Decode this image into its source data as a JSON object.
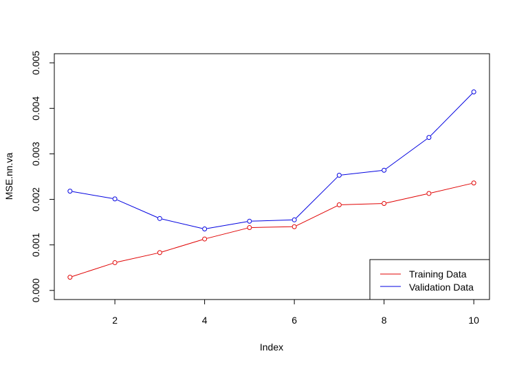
{
  "chart_data": {
    "type": "line",
    "xlabel": "Index",
    "ylabel": "MSE.nn.va",
    "xlim": [
      0.65,
      10.35
    ],
    "ylim": [
      -0.0002,
      0.0052
    ],
    "x_ticks": [
      2,
      4,
      6,
      8,
      10
    ],
    "x_tick_labels": [
      "2",
      "4",
      "6",
      "8",
      "10"
    ],
    "y_ticks": [
      0,
      0.001,
      0.002,
      0.003,
      0.004,
      0.005
    ],
    "y_tick_labels": [
      "0.000",
      "0.001",
      "0.002",
      "0.003",
      "0.004",
      "0.005"
    ],
    "x": [
      1,
      2,
      3,
      4,
      5,
      6,
      7,
      8,
      9,
      10
    ],
    "series": [
      {
        "name": "Training Data",
        "color": "#e00000",
        "values": [
          0.00029,
          0.00061,
          0.00083,
          0.00113,
          0.00138,
          0.0014,
          0.00188,
          0.00191,
          0.00213,
          0.00236
        ]
      },
      {
        "name": "Validation Data",
        "color": "#0000e0",
        "values": [
          0.00218,
          0.00201,
          0.00158,
          0.00135,
          0.00152,
          0.00155,
          0.00253,
          0.00264,
          0.00336,
          0.00436
        ]
      }
    ],
    "marker": "open-circle",
    "grid": false,
    "legend_position": "bottom-right"
  }
}
